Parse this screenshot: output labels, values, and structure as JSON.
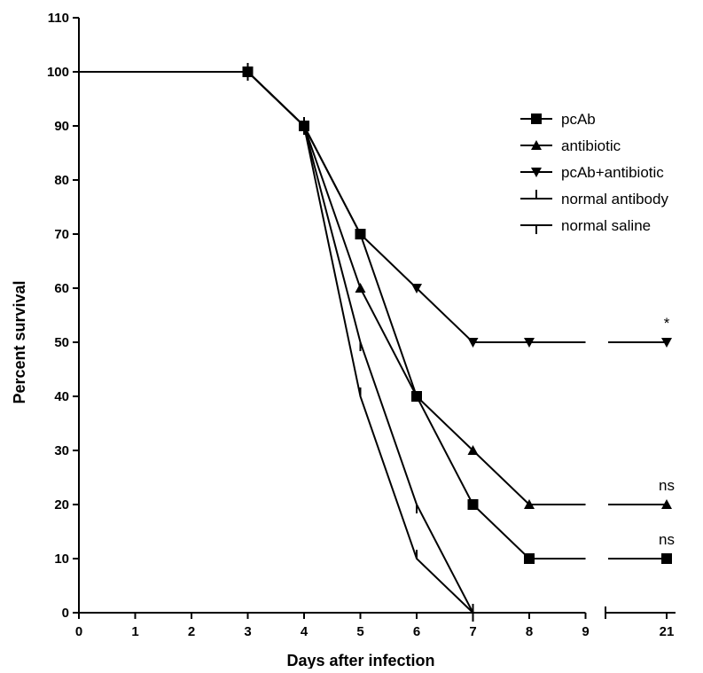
{
  "chart_data": {
    "type": "line",
    "title": "",
    "xlabel": "Days after infection",
    "ylabel": "Percent survival",
    "ylim": [
      0,
      110
    ],
    "yticks": [
      0,
      10,
      20,
      30,
      40,
      50,
      60,
      70,
      80,
      90,
      100,
      110
    ],
    "xticks": [
      "0",
      "1",
      "2",
      "3",
      "4",
      "5",
      "6",
      "7",
      "8",
      "9",
      "21"
    ],
    "x_axis_break": "between 9 and 21",
    "grid": false,
    "legend_position": "right",
    "series": [
      {
        "name": "pcAb",
        "marker": "square",
        "points": [
          [
            0,
            100
          ],
          [
            3,
            100
          ],
          [
            4,
            90
          ],
          [
            5,
            70
          ],
          [
            6,
            40
          ],
          [
            7,
            20
          ],
          [
            8,
            10
          ],
          [
            21,
            10
          ]
        ],
        "annotation": "ns"
      },
      {
        "name": "antibiotic",
        "marker": "triangle-up",
        "points": [
          [
            0,
            100
          ],
          [
            3,
            100
          ],
          [
            4,
            90
          ],
          [
            5,
            60
          ],
          [
            6,
            40
          ],
          [
            7,
            30
          ],
          [
            8,
            20
          ],
          [
            21,
            20
          ]
        ],
        "annotation": "ns"
      },
      {
        "name": "pcAb+antibiotic",
        "marker": "triangle-down",
        "points": [
          [
            0,
            100
          ],
          [
            3,
            100
          ],
          [
            4,
            90
          ],
          [
            5,
            70
          ],
          [
            6,
            60
          ],
          [
            7,
            50
          ],
          [
            8,
            50
          ],
          [
            21,
            50
          ]
        ],
        "annotation": "*"
      },
      {
        "name": "normal antibody",
        "marker": "tick-up",
        "points": [
          [
            0,
            100
          ],
          [
            3,
            100
          ],
          [
            4,
            90
          ],
          [
            5,
            40
          ],
          [
            6,
            10
          ],
          [
            7,
            0
          ]
        ],
        "annotation": ""
      },
      {
        "name": "normal saline",
        "marker": "tick-down",
        "points": [
          [
            0,
            100
          ],
          [
            3,
            100
          ],
          [
            4,
            90
          ],
          [
            5,
            50
          ],
          [
            6,
            20
          ],
          [
            7,
            0
          ]
        ],
        "annotation": ""
      }
    ]
  }
}
